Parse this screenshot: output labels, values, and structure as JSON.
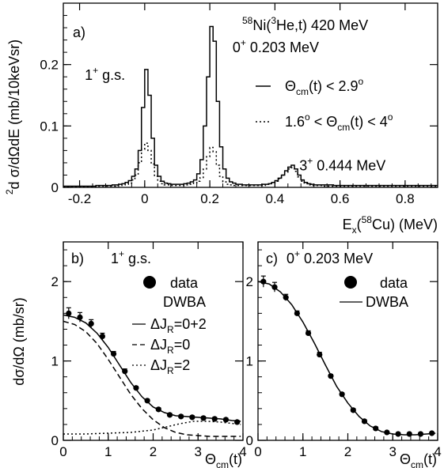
{
  "chart_data": [
    {
      "panel": "a",
      "type": "line",
      "panel_label": "a)",
      "reaction": {
        "mass": "58",
        "el": "Ni(",
        "proj_mass": "3",
        "proj": "He,t) 420 MeV"
      },
      "xlabel": {
        "pre": "E",
        "sub": "x",
        "mid": "(",
        "sup": "58",
        "post": "Cu) (MeV)"
      },
      "ylabel": {
        "sup": "2",
        "text": "d σ/dΩdE (mb/10keVsr)"
      },
      "xlim": [
        -0.25,
        0.9
      ],
      "ylim": [
        0,
        0.3
      ],
      "xticks": [
        -0.2,
        0,
        0.2,
        0.4,
        0.6,
        0.8
      ],
      "xtick_labels": [
        "-0.2",
        "0",
        "0.2",
        "0.4",
        "0.6",
        "0.8"
      ],
      "yticks": [
        0,
        0.1,
        0.2
      ],
      "ytick_labels": [
        "0",
        "0.1",
        "0.2"
      ],
      "annotations": [
        {
          "sup": "+",
          "pre": "1",
          "post": " g.s.",
          "x": -0.06,
          "y": 0.175
        },
        {
          "sup": "+",
          "pre": "0",
          "post": " 0.203 MeV",
          "x": 0.27,
          "y": 0.22
        },
        {
          "sup": "+",
          "pre": "3",
          "post": " 0.444 MeV",
          "x": 0.475,
          "y": 0.028
        }
      ],
      "legend": [
        {
          "style": "solid",
          "text": {
            "pre": "Θ",
            "sub": "cm",
            "mid": "(t) < 2.9",
            "sup": "o"
          }
        },
        {
          "style": "dotted",
          "text": {
            "pre": "1.6",
            "sup1": "o",
            "mid1": " < Θ",
            "sub": "cm",
            "mid2": "(t) < 4",
            "sup2": "o"
          }
        }
      ],
      "series": [
        {
          "name": "Θcm(t) < 2.9°",
          "style": "solid-step",
          "bin_width": 0.01,
          "x": [
            -0.25,
            -0.24,
            -0.23,
            -0.22,
            -0.21,
            -0.2,
            -0.19,
            -0.18,
            -0.17,
            -0.16,
            -0.15,
            -0.14,
            -0.13,
            -0.12,
            -0.11,
            -0.1,
            -0.09,
            -0.08,
            -0.07,
            -0.06,
            -0.05,
            -0.04,
            -0.03,
            -0.02,
            -0.01,
            0.0,
            0.01,
            0.02,
            0.03,
            0.04,
            0.05,
            0.06,
            0.07,
            0.08,
            0.09,
            0.1,
            0.11,
            0.12,
            0.13,
            0.14,
            0.15,
            0.16,
            0.17,
            0.18,
            0.19,
            0.2,
            0.21,
            0.22,
            0.23,
            0.24,
            0.25,
            0.26,
            0.27,
            0.28,
            0.29,
            0.3,
            0.31,
            0.32,
            0.33,
            0.34,
            0.35,
            0.36,
            0.37,
            0.38,
            0.39,
            0.4,
            0.41,
            0.42,
            0.43,
            0.44,
            0.45,
            0.46,
            0.47,
            0.48,
            0.49,
            0.5,
            0.51,
            0.52,
            0.53,
            0.54,
            0.55,
            0.56,
            0.57,
            0.58,
            0.59,
            0.6,
            0.61,
            0.62,
            0.63,
            0.64,
            0.65,
            0.66,
            0.67,
            0.68,
            0.69,
            0.7,
            0.71,
            0.72,
            0.73,
            0.74,
            0.75,
            0.76,
            0.77,
            0.78,
            0.79,
            0.8,
            0.81,
            0.82,
            0.83,
            0.84,
            0.85,
            0.86,
            0.87,
            0.88,
            0.89
          ],
          "y": [
            0.002,
            0.002,
            0.002,
            0.002,
            0.002,
            0.002,
            0.002,
            0.002,
            0.002,
            0.002,
            0.003,
            0.003,
            0.003,
            0.003,
            0.003,
            0.004,
            0.004,
            0.005,
            0.006,
            0.008,
            0.011,
            0.018,
            0.03,
            0.06,
            0.13,
            0.192,
            0.15,
            0.08,
            0.036,
            0.018,
            0.01,
            0.007,
            0.006,
            0.005,
            0.005,
            0.005,
            0.005,
            0.006,
            0.007,
            0.009,
            0.012,
            0.022,
            0.045,
            0.1,
            0.18,
            0.262,
            0.238,
            0.14,
            0.066,
            0.03,
            0.015,
            0.009,
            0.007,
            0.005,
            0.005,
            0.004,
            0.004,
            0.004,
            0.004,
            0.004,
            0.004,
            0.005,
            0.005,
            0.006,
            0.008,
            0.011,
            0.015,
            0.02,
            0.027,
            0.033,
            0.036,
            0.03,
            0.02,
            0.012,
            0.008,
            0.006,
            0.005,
            0.004,
            0.004,
            0.004,
            0.004,
            0.004,
            0.004,
            0.003,
            0.003,
            0.003,
            0.003,
            0.003,
            0.003,
            0.003,
            0.003,
            0.003,
            0.003,
            0.003,
            0.003,
            0.003,
            0.003,
            0.003,
            0.003,
            0.003,
            0.003,
            0.003,
            0.003,
            0.003,
            0.003,
            0.003,
            0.003,
            0.003,
            0.003,
            0.003,
            0.003,
            0.003,
            0.003,
            0.003,
            0.003
          ]
        },
        {
          "name": "1.6° < Θcm(t) < 4°",
          "style": "dotted-step",
          "bin_width": 0.01,
          "x": [
            -0.25,
            -0.24,
            -0.23,
            -0.22,
            -0.21,
            -0.2,
            -0.19,
            -0.18,
            -0.17,
            -0.16,
            -0.15,
            -0.14,
            -0.13,
            -0.12,
            -0.11,
            -0.1,
            -0.09,
            -0.08,
            -0.07,
            -0.06,
            -0.05,
            -0.04,
            -0.03,
            -0.02,
            -0.01,
            0.0,
            0.01,
            0.02,
            0.03,
            0.04,
            0.05,
            0.06,
            0.07,
            0.08,
            0.09,
            0.1,
            0.11,
            0.12,
            0.13,
            0.14,
            0.15,
            0.16,
            0.17,
            0.18,
            0.19,
            0.2,
            0.21,
            0.22,
            0.23,
            0.24,
            0.25,
            0.26,
            0.27,
            0.28,
            0.29,
            0.3,
            0.31,
            0.32,
            0.33,
            0.34,
            0.35,
            0.36,
            0.37,
            0.38,
            0.39,
            0.4,
            0.41,
            0.42,
            0.43,
            0.44,
            0.45,
            0.46,
            0.47,
            0.48,
            0.49,
            0.5,
            0.51,
            0.52,
            0.53,
            0.54,
            0.55,
            0.56,
            0.57,
            0.58,
            0.59,
            0.6,
            0.61,
            0.62,
            0.63,
            0.64,
            0.65,
            0.66,
            0.67,
            0.68,
            0.69,
            0.7,
            0.71,
            0.72,
            0.73,
            0.74,
            0.75,
            0.76,
            0.77,
            0.78,
            0.79,
            0.8,
            0.81,
            0.82,
            0.83,
            0.84,
            0.85,
            0.86,
            0.87,
            0.88,
            0.89
          ],
          "y": [
            0.001,
            0.001,
            0.001,
            0.001,
            0.001,
            0.001,
            0.001,
            0.001,
            0.001,
            0.001,
            0.002,
            0.002,
            0.002,
            0.002,
            0.002,
            0.002,
            0.003,
            0.003,
            0.004,
            0.005,
            0.007,
            0.012,
            0.02,
            0.04,
            0.062,
            0.072,
            0.06,
            0.038,
            0.018,
            0.01,
            0.006,
            0.004,
            0.004,
            0.003,
            0.003,
            0.003,
            0.003,
            0.004,
            0.004,
            0.005,
            0.007,
            0.01,
            0.016,
            0.03,
            0.05,
            0.065,
            0.058,
            0.036,
            0.018,
            0.009,
            0.005,
            0.004,
            0.003,
            0.003,
            0.003,
            0.003,
            0.003,
            0.003,
            0.003,
            0.003,
            0.003,
            0.003,
            0.004,
            0.005,
            0.007,
            0.01,
            0.014,
            0.02,
            0.025,
            0.03,
            0.032,
            0.026,
            0.017,
            0.01,
            0.006,
            0.004,
            0.003,
            0.003,
            0.003,
            0.003,
            0.002,
            0.002,
            0.002,
            0.002,
            0.002,
            0.002,
            0.002,
            0.002,
            0.002,
            0.002,
            0.002,
            0.002,
            0.002,
            0.002,
            0.002,
            0.002,
            0.002,
            0.002,
            0.002,
            0.002,
            0.002,
            0.002,
            0.002,
            0.002,
            0.002,
            0.002,
            0.002,
            0.002,
            0.002,
            0.002,
            0.002,
            0.002,
            0.002,
            0.002,
            0.002
          ]
        }
      ]
    },
    {
      "panel": "b",
      "type": "scatter",
      "panel_label": "b)",
      "state": {
        "pre": "1",
        "sup": "+",
        "post": " g.s."
      },
      "xlabel": {
        "pre": "Θ",
        "sub": "cm",
        "post": "(t)"
      },
      "ylabel": "dσ/dΩ (mb/sr)",
      "xlim": [
        0,
        4
      ],
      "ylim": [
        0,
        2.5
      ],
      "xticks": [
        0,
        1,
        2,
        3,
        4
      ],
      "xtick_labels": [
        "0",
        "1",
        "2",
        "3",
        "4"
      ],
      "yticks": [
        0,
        1,
        2
      ],
      "ytick_labels": [
        "0",
        "1",
        "2"
      ],
      "legend_data_label": "data",
      "legend_title": "DWBA",
      "legend": [
        {
          "style": "solid",
          "pre": "ΔJ",
          "sub": "R",
          "post": "=0+2"
        },
        {
          "style": "dashed",
          "pre": "ΔJ",
          "sub": "R",
          "post": "=0"
        },
        {
          "style": "dotted",
          "pre": "ΔJ",
          "sub": "R",
          "post": "=2"
        }
      ],
      "data": {
        "x": [
          0.12,
          0.37,
          0.62,
          0.87,
          1.12,
          1.37,
          1.62,
          1.87,
          2.12,
          2.37,
          2.62,
          2.87,
          3.12,
          3.37,
          3.62,
          3.87
        ],
        "y": [
          1.6,
          1.55,
          1.47,
          1.31,
          1.09,
          0.87,
          0.66,
          0.5,
          0.39,
          0.32,
          0.3,
          0.29,
          0.28,
          0.27,
          0.26,
          0.23
        ],
        "err": [
          0.07,
          0.06,
          0.05,
          0.04,
          0.03,
          0.03,
          0.02,
          0.02,
          0.02,
          0.02,
          0.02,
          0.02,
          0.02,
          0.02,
          0.02,
          0.02
        ]
      },
      "series": [
        {
          "name": "ΔJR=0+2",
          "style": "solid",
          "x": [
            0,
            0.25,
            0.5,
            0.75,
            1.0,
            1.25,
            1.5,
            1.75,
            2.0,
            2.25,
            2.5,
            2.75,
            3.0,
            3.25,
            3.5,
            3.75,
            3.95
          ],
          "y": [
            1.58,
            1.55,
            1.48,
            1.35,
            1.17,
            0.95,
            0.73,
            0.55,
            0.42,
            0.35,
            0.31,
            0.3,
            0.29,
            0.28,
            0.27,
            0.25,
            0.24
          ]
        },
        {
          "name": "ΔJR=0",
          "style": "dashed",
          "x": [
            0,
            0.25,
            0.5,
            0.75,
            1.0,
            1.25,
            1.5,
            1.75,
            2.0,
            2.25,
            2.5,
            2.75,
            3.0,
            3.25,
            3.5,
            3.75,
            3.95
          ],
          "y": [
            1.5,
            1.46,
            1.37,
            1.22,
            1.02,
            0.8,
            0.58,
            0.4,
            0.26,
            0.16,
            0.1,
            0.07,
            0.06,
            0.05,
            0.05,
            0.05,
            0.05
          ]
        },
        {
          "name": "ΔJR=2",
          "style": "dotted",
          "x": [
            0,
            0.5,
            1.0,
            1.5,
            2.0,
            2.3,
            2.6,
            2.9,
            3.2,
            3.5,
            3.8,
            3.95
          ],
          "y": [
            0.08,
            0.08,
            0.09,
            0.1,
            0.13,
            0.17,
            0.21,
            0.24,
            0.24,
            0.23,
            0.21,
            0.2
          ]
        }
      ]
    },
    {
      "panel": "c",
      "type": "scatter",
      "panel_label": "c)",
      "state": {
        "pre": "0",
        "sup": "+",
        "post": " 0.203 MeV"
      },
      "xlabel": {
        "pre": "Θ",
        "sub": "cm",
        "post": "(t)"
      },
      "xlim": [
        0,
        4
      ],
      "ylim": [
        0,
        2.5
      ],
      "xticks": [
        0,
        1,
        2,
        3,
        4
      ],
      "xtick_labels": [
        "0",
        "1",
        "2",
        "3",
        "4"
      ],
      "yticks": [
        0,
        1,
        2
      ],
      "ytick_labels": [
        "0",
        "1",
        "2"
      ],
      "legend_data_label": "data",
      "legend_line_label": "DWBA",
      "data": {
        "x": [
          0.12,
          0.37,
          0.62,
          0.87,
          1.12,
          1.37,
          1.62,
          1.87,
          2.12,
          2.37,
          2.62,
          2.87,
          3.12,
          3.37,
          3.62,
          3.87
        ],
        "y": [
          2.0,
          1.93,
          1.8,
          1.6,
          1.35,
          1.08,
          0.81,
          0.58,
          0.38,
          0.24,
          0.15,
          0.1,
          0.08,
          0.08,
          0.08,
          0.09
        ],
        "err": [
          0.07,
          0.06,
          0.04,
          0.03,
          0.03,
          0.03,
          0.02,
          0.02,
          0.02,
          0.02,
          0.02,
          0.01,
          0.01,
          0.01,
          0.01,
          0.01
        ]
      },
      "series": [
        {
          "name": "DWBA",
          "style": "solid",
          "x": [
            0,
            0.25,
            0.5,
            0.75,
            1.0,
            1.25,
            1.5,
            1.75,
            2.0,
            2.25,
            2.5,
            2.75,
            3.0,
            3.25,
            3.5,
            3.75,
            3.95
          ],
          "y": [
            2.0,
            1.97,
            1.87,
            1.71,
            1.49,
            1.23,
            0.95,
            0.68,
            0.47,
            0.3,
            0.18,
            0.11,
            0.08,
            0.07,
            0.07,
            0.08,
            0.09
          ]
        }
      ]
    }
  ]
}
